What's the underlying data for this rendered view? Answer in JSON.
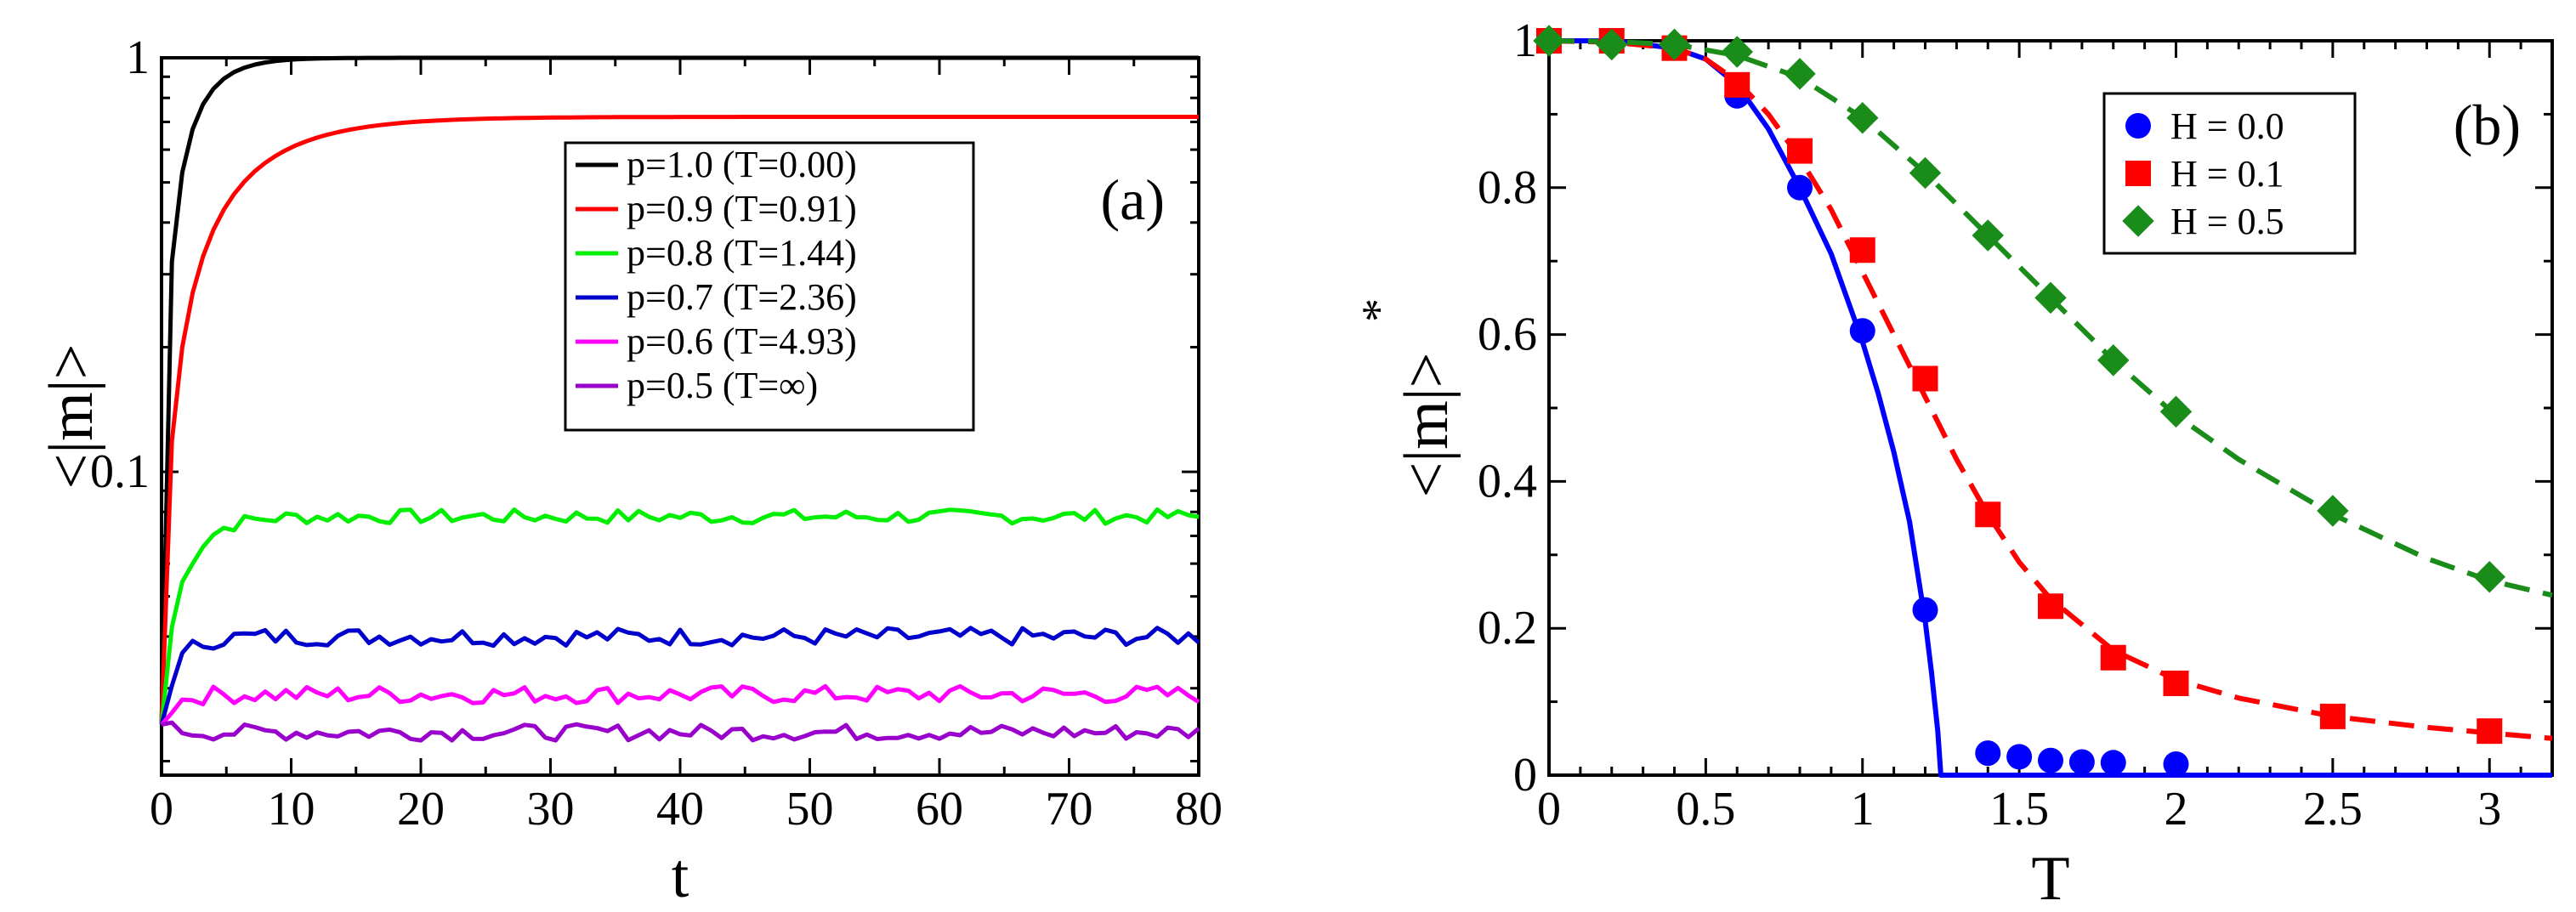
{
  "chart_data": [
    {
      "id": "a",
      "type": "line",
      "panel_label": "(a)",
      "xlabel": "t",
      "ylabel": "<|m|>",
      "xlim": [
        0,
        80
      ],
      "ylim": [
        0.0185,
        1.0
      ],
      "yscale": "log",
      "xticks": [
        0,
        10,
        20,
        30,
        40,
        50,
        60,
        70,
        80
      ],
      "xtick_labels": [
        "0",
        "10",
        "20",
        "30",
        "40",
        "50",
        "60",
        "70",
        "80"
      ],
      "yticks": [
        0.1,
        1
      ],
      "ytick_labels": [
        "0.1",
        "1"
      ],
      "legend_position": "upper-right",
      "series": [
        {
          "name": "p=1.0 (T=0.00)",
          "color": "#000000",
          "model": "sat",
          "start": 0.0245,
          "end": 1.0,
          "tau": 2.2
        },
        {
          "name": "p=0.9 (T=0.91)",
          "color": "#ff0000",
          "model": "sat",
          "start": 0.0245,
          "end": 0.72,
          "tau": 5.5
        },
        {
          "name": "p=0.8 (T=1.44)",
          "color": "#00ee00",
          "model": "sat",
          "start": 0.0245,
          "end": 0.078,
          "tau": 2.0,
          "noise": 0.04
        },
        {
          "name": "p=0.7 (T=2.36)",
          "color": "#0000cc",
          "model": "sat",
          "start": 0.0245,
          "end": 0.04,
          "tau": 1.3,
          "noise": 0.05
        },
        {
          "name": "p=0.6 (T=4.93)",
          "color": "#ff00ff",
          "model": "sat",
          "start": 0.0245,
          "end": 0.029,
          "tau": 1.0,
          "noise": 0.05
        },
        {
          "name": "p=0.5 (T=∞)",
          "color": "#9900cc",
          "model": "flat",
          "start": 0.0245,
          "end": 0.0235,
          "tau": 1.0,
          "noise": 0.045
        }
      ]
    },
    {
      "id": "b",
      "type": "scatter",
      "panel_label": "(b)",
      "xlabel": "T",
      "ylabel": "<|m|>",
      "ylabel_superscript": "*",
      "xlim": [
        0,
        3.2
      ],
      "ylim": [
        0,
        1
      ],
      "xticks": [
        0,
        0.5,
        1,
        1.5,
        2,
        2.5,
        3
      ],
      "xtick_labels": [
        "0",
        "0.5",
        "1",
        "1.5",
        "2",
        "2.5",
        "3"
      ],
      "yticks": [
        0,
        0.2,
        0.4,
        0.6,
        0.8,
        1
      ],
      "ytick_labels": [
        "0",
        "0.2",
        "0.4",
        "0.6",
        "0.8",
        "1"
      ],
      "legend_position": "upper-right",
      "series": [
        {
          "name": "H = 0.0",
          "color": "#0000ff",
          "marker": "circle",
          "fit": "solid",
          "x": [
            0,
            0.2,
            0.4,
            0.6,
            0.8,
            1.0,
            1.2,
            1.4,
            1.5,
            1.6,
            1.7,
            1.8,
            2.0
          ],
          "y": [
            1.0,
            1.0,
            0.99,
            0.925,
            0.8,
            0.605,
            0.225,
            0.03,
            0.025,
            0.02,
            0.018,
            0.017,
            0.015
          ],
          "fit_x": [
            0,
            0.2,
            0.4,
            0.5,
            0.6,
            0.7,
            0.8,
            0.9,
            1.0,
            1.05,
            1.1,
            1.15,
            1.2,
            1.22,
            1.24,
            1.25,
            1.3,
            2.0,
            3.2
          ],
          "fit_y": [
            1.0,
            1.0,
            0.99,
            0.975,
            0.94,
            0.88,
            0.8,
            0.71,
            0.59,
            0.52,
            0.44,
            0.345,
            0.21,
            0.14,
            0.06,
            0.0,
            0.0,
            0.0,
            0.0
          ]
        },
        {
          "name": "H = 0.1",
          "color": "#ff0000",
          "marker": "square",
          "fit": "dashed",
          "x": [
            0,
            0.2,
            0.4,
            0.6,
            0.8,
            1.0,
            1.2,
            1.4,
            1.6,
            1.8,
            2.0,
            2.5,
            3.0
          ],
          "y": [
            1.0,
            1.0,
            0.99,
            0.94,
            0.85,
            0.715,
            0.54,
            0.355,
            0.23,
            0.16,
            0.125,
            0.08,
            0.06
          ],
          "fit_x": [
            0,
            0.2,
            0.4,
            0.5,
            0.6,
            0.7,
            0.8,
            0.9,
            1.0,
            1.1,
            1.2,
            1.3,
            1.4,
            1.5,
            1.6,
            1.8,
            2.0,
            2.2,
            2.5,
            2.8,
            3.2
          ],
          "fit_y": [
            1.0,
            0.998,
            0.99,
            0.975,
            0.945,
            0.9,
            0.84,
            0.77,
            0.685,
            0.6,
            0.515,
            0.43,
            0.355,
            0.29,
            0.24,
            0.17,
            0.13,
            0.105,
            0.08,
            0.065,
            0.05
          ]
        },
        {
          "name": "H = 0.5",
          "color": "#1a8c1a",
          "marker": "diamond",
          "fit": "dashed",
          "x": [
            0,
            0.2,
            0.4,
            0.6,
            0.8,
            1.0,
            1.2,
            1.4,
            1.6,
            1.8,
            2.0,
            2.5,
            3.0
          ],
          "y": [
            1.0,
            0.995,
            0.995,
            0.985,
            0.955,
            0.895,
            0.82,
            0.735,
            0.65,
            0.565,
            0.495,
            0.36,
            0.27
          ],
          "fit_x": [
            0,
            0.2,
            0.4,
            0.6,
            0.8,
            1.0,
            1.2,
            1.4,
            1.6,
            1.8,
            2.0,
            2.2,
            2.5,
            2.8,
            3.0,
            3.2
          ],
          "fit_y": [
            1.0,
            0.999,
            0.995,
            0.98,
            0.95,
            0.895,
            0.82,
            0.735,
            0.65,
            0.565,
            0.49,
            0.43,
            0.355,
            0.295,
            0.265,
            0.245
          ]
        }
      ]
    }
  ]
}
